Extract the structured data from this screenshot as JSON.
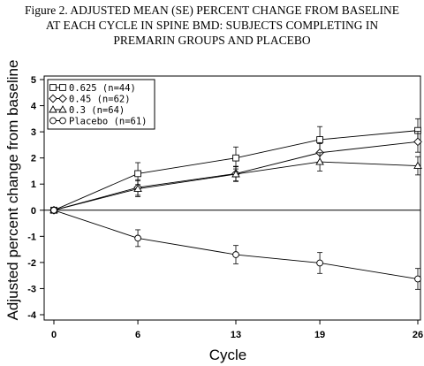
{
  "chart_data": {
    "type": "line",
    "title_lines": [
      "Figure 2. ADJUSTED MEAN (SE) PERCENT CHANGE FROM BASELINE",
      "AT EACH CYCLE IN SPINE BMD: SUBJECTS COMPLETING IN",
      "PREMARIN GROUPS AND PLACEBO"
    ],
    "xlabel": "Cycle",
    "ylabel": "Adjusted percent change from baseline",
    "x": [
      0,
      6,
      13,
      19,
      26
    ],
    "x_tick_labels": [
      "0",
      "6",
      "13",
      "19",
      "26"
    ],
    "ylim": [
      -4,
      5
    ],
    "y_ticks": [
      -4,
      -3,
      -2,
      -1,
      0,
      1,
      2,
      3,
      4,
      5
    ],
    "y_tick_labels": [
      "-4",
      "-3",
      "-2",
      "-1",
      "0",
      "1",
      "2",
      "3",
      "4",
      "5"
    ],
    "reference_line": 0,
    "grid": false,
    "legend_position": "top-left",
    "series": [
      {
        "name": "0.625 (n=44)",
        "marker": "square",
        "values": [
          0,
          1.4,
          2.0,
          2.7,
          3.05
        ],
        "err": [
          0,
          0.42,
          0.42,
          0.5,
          0.45
        ]
      },
      {
        "name": "0.45 (n=62)",
        "marker": "diamond",
        "values": [
          0,
          0.87,
          1.4,
          2.2,
          2.62
        ],
        "err": [
          0,
          0.3,
          0.28,
          0.35,
          0.4
        ]
      },
      {
        "name": "0.3 (n=64)",
        "marker": "triangle",
        "values": [
          0,
          0.82,
          1.38,
          1.85,
          1.7
        ],
        "err": [
          0,
          0.3,
          0.28,
          0.35,
          0.35
        ]
      },
      {
        "name": "Placebo (n=61)",
        "marker": "circle",
        "values": [
          0,
          -1.07,
          -1.7,
          -2.02,
          -2.63
        ],
        "err": [
          0,
          0.32,
          0.35,
          0.4,
          0.4
        ]
      }
    ]
  }
}
